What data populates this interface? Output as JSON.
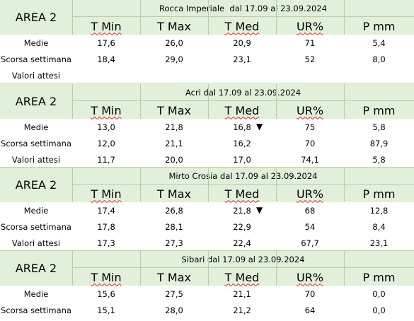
{
  "col_headers": [
    "T Min",
    "T Max",
    "T Med",
    "UR%",
    "P mm"
  ],
  "arrow_down": "▼",
  "blocks": [
    {
      "area": "AREA 2",
      "title": "Rocca Imperiale  dal 17.09 al 23.09.2024",
      "rows": [
        {
          "label": "Medie",
          "values": [
            "17,6",
            "26,0",
            "20,9",
            "71",
            "5,4"
          ],
          "med_arrow": false
        },
        {
          "label": "Scorsa settimana",
          "values": [
            "18,4",
            "29,0",
            "23,1",
            "52",
            "8,0"
          ],
          "med_arrow": false
        },
        {
          "label": "Valori attesi",
          "values": [
            "",
            "",
            "",
            "",
            ""
          ],
          "med_arrow": false
        }
      ]
    },
    {
      "area": "AREA 2",
      "title": "Acri dal 17.09 al 23.09.2024",
      "rows": [
        {
          "label": "Medie",
          "values": [
            "13,0",
            "21,8",
            "16,8",
            "75",
            "5,8"
          ],
          "med_arrow": true
        },
        {
          "label": "Scorsa settimana",
          "values": [
            "12,0",
            "21,1",
            "16,2",
            "70",
            "87,9"
          ],
          "med_arrow": false
        },
        {
          "label": "Valori attesi",
          "values": [
            "11,7",
            "20,0",
            "17,0",
            "74,1",
            "5,8"
          ],
          "med_arrow": false
        }
      ]
    },
    {
      "area": "AREA 2",
      "title": "Mirto Crosia dal 17.09 al 23.09.2024",
      "rows": [
        {
          "label": "Medie",
          "values": [
            "17,4",
            "26,8",
            "21,8",
            "68",
            "12,8"
          ],
          "med_arrow": true
        },
        {
          "label": "Scorsa settimana",
          "values": [
            "17,8",
            "28,1",
            "22,9",
            "54",
            "8,4"
          ],
          "med_arrow": false
        },
        {
          "label": "Valori attesi",
          "values": [
            "17,3",
            "27,3",
            "22,4",
            "67,7",
            "23,1"
          ],
          "med_arrow": false
        }
      ]
    },
    {
      "area": "AREA 2",
      "title": "Sibari dal 17.09 al 23.09.2024",
      "rows": [
        {
          "label": "Medie",
          "values": [
            "15,6",
            "27,5",
            "21,1",
            "70",
            "0,0"
          ],
          "med_arrow": false
        },
        {
          "label": "Scorsa settimana",
          "values": [
            "15,1",
            "28,0",
            "21,2",
            "64",
            "0,0"
          ],
          "med_arrow": false
        }
      ]
    }
  ]
}
